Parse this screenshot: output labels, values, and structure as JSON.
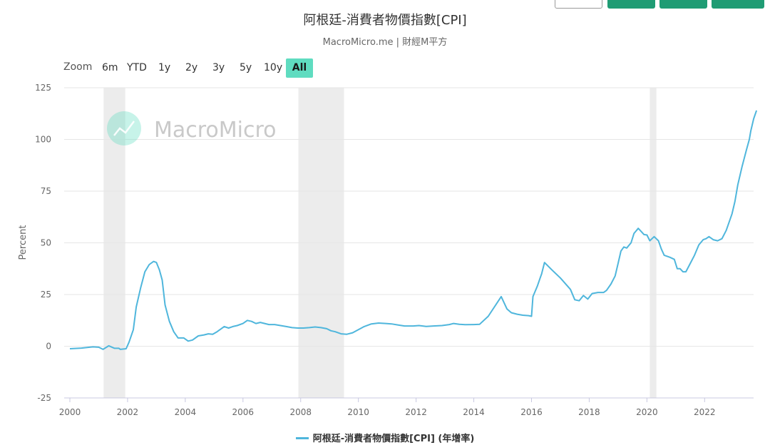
{
  "header": {
    "title": "阿根廷-消費者物價指數[CPI]",
    "subtitle": "MacroMicro.me | 財經M平方"
  },
  "range_selector": {
    "zoom_label": "Zoom",
    "buttons": [
      "6m",
      "YTD",
      "1y",
      "2y",
      "3y",
      "5y",
      "10y",
      "All"
    ],
    "active": "All",
    "active_color": "#5fdcc0"
  },
  "watermark": {
    "text": "MacroMicro"
  },
  "colors": {
    "line": "#4fb6dc",
    "band": "#ececec",
    "grid": "#e6e6e6",
    "accent": "#1f9c74"
  },
  "chart_data": {
    "type": "line",
    "title": "阿根廷-消費者物價指數[CPI]",
    "ylabel": "Percent",
    "ylim": [
      -25,
      125
    ],
    "yticks": [
      -25,
      0,
      25,
      50,
      75,
      100,
      125
    ],
    "xlim": [
      2000,
      2023.6
    ],
    "xticks": [
      "2000",
      "2002",
      "2004",
      "2006",
      "2008",
      "2010",
      "2012",
      "2014",
      "2016",
      "2018",
      "2020",
      "2022"
    ],
    "grid": true,
    "legend": "bottom-center",
    "recession_bands": [
      [
        2001.17,
        2001.92
      ],
      [
        2007.92,
        2009.5
      ],
      [
        2020.1,
        2020.33
      ]
    ],
    "series": [
      {
        "name": "阿根廷-消費者物價指數[CPI] (年增率)",
        "points": [
          [
            2000.0,
            -1.2
          ],
          [
            2000.4,
            -0.9
          ],
          [
            2000.8,
            -0.3
          ],
          [
            2001.0,
            -0.5
          ],
          [
            2001.15,
            -1.5
          ],
          [
            2001.35,
            0.2
          ],
          [
            2001.55,
            -1.0
          ],
          [
            2001.7,
            -1.0
          ],
          [
            2001.75,
            -1.5
          ],
          [
            2001.95,
            -1.2
          ],
          [
            2002.05,
            2.0
          ],
          [
            2002.2,
            8.0
          ],
          [
            2002.3,
            19.0
          ],
          [
            2002.45,
            28.0
          ],
          [
            2002.6,
            36.0
          ],
          [
            2002.75,
            39.5
          ],
          [
            2002.9,
            41.0
          ],
          [
            2003.0,
            40.5
          ],
          [
            2003.1,
            37.0
          ],
          [
            2003.2,
            32.0
          ],
          [
            2003.3,
            20.0
          ],
          [
            2003.45,
            12.0
          ],
          [
            2003.6,
            7.0
          ],
          [
            2003.75,
            4.0
          ],
          [
            2003.95,
            4.0
          ],
          [
            2004.1,
            2.5
          ],
          [
            2004.25,
            3.0
          ],
          [
            2004.45,
            5.0
          ],
          [
            2004.65,
            5.5
          ],
          [
            2004.8,
            6.0
          ],
          [
            2004.95,
            5.8
          ],
          [
            2005.1,
            7.0
          ],
          [
            2005.35,
            9.5
          ],
          [
            2005.5,
            8.8
          ],
          [
            2005.65,
            9.5
          ],
          [
            2005.8,
            10.0
          ],
          [
            2006.0,
            11.0
          ],
          [
            2006.15,
            12.5
          ],
          [
            2006.3,
            12.0
          ],
          [
            2006.45,
            11.0
          ],
          [
            2006.6,
            11.5
          ],
          [
            2006.75,
            11.0
          ],
          [
            2006.9,
            10.5
          ],
          [
            2007.1,
            10.5
          ],
          [
            2007.3,
            10.0
          ],
          [
            2007.5,
            9.5
          ],
          [
            2007.7,
            9.0
          ],
          [
            2007.9,
            8.8
          ],
          [
            2008.1,
            8.8
          ],
          [
            2008.3,
            9.0
          ],
          [
            2008.5,
            9.3
          ],
          [
            2008.7,
            9.0
          ],
          [
            2008.9,
            8.5
          ],
          [
            2009.05,
            7.5
          ],
          [
            2009.2,
            7.0
          ],
          [
            2009.4,
            6.0
          ],
          [
            2009.6,
            5.8
          ],
          [
            2009.8,
            6.5
          ],
          [
            2010.0,
            8.0
          ],
          [
            2010.2,
            9.5
          ],
          [
            2010.45,
            10.8
          ],
          [
            2010.7,
            11.2
          ],
          [
            2010.95,
            11.0
          ],
          [
            2011.15,
            10.8
          ],
          [
            2011.4,
            10.2
          ],
          [
            2011.6,
            9.8
          ],
          [
            2011.9,
            9.8
          ],
          [
            2012.1,
            10.0
          ],
          [
            2012.35,
            9.6
          ],
          [
            2012.6,
            9.8
          ],
          [
            2012.9,
            10.0
          ],
          [
            2013.15,
            10.5
          ],
          [
            2013.3,
            11.0
          ],
          [
            2013.5,
            10.6
          ],
          [
            2013.7,
            10.4
          ],
          [
            2014.0,
            10.5
          ],
          [
            2014.2,
            10.6
          ],
          [
            2014.5,
            14.5
          ],
          [
            2014.95,
            24.0
          ],
          [
            2015.15,
            18.0
          ],
          [
            2015.3,
            16.2
          ],
          [
            2015.5,
            15.5
          ],
          [
            2015.7,
            15.0
          ],
          [
            2015.9,
            14.8
          ],
          [
            2016.0,
            14.5
          ],
          [
            2016.05,
            24.0
          ],
          [
            2016.2,
            29.0
          ],
          [
            2016.3,
            33.0
          ],
          [
            2016.35,
            35.0
          ],
          [
            2016.45,
            40.5
          ],
          [
            2016.7,
            37.0
          ],
          [
            2017.0,
            33.0
          ],
          [
            2017.35,
            27.5
          ],
          [
            2017.5,
            22.5
          ],
          [
            2017.65,
            22.0
          ],
          [
            2017.8,
            24.5
          ],
          [
            2017.95,
            22.8
          ],
          [
            2018.1,
            25.5
          ],
          [
            2018.3,
            26.0
          ],
          [
            2018.5,
            26.0
          ],
          [
            2018.6,
            27.0
          ],
          [
            2018.75,
            30.0
          ],
          [
            2018.9,
            34.0
          ],
          [
            2019.0,
            40.0
          ],
          [
            2019.1,
            46.0
          ],
          [
            2019.2,
            48.0
          ],
          [
            2019.3,
            47.5
          ],
          [
            2019.45,
            50.0
          ],
          [
            2019.55,
            54.5
          ],
          [
            2019.7,
            57.0
          ],
          [
            2019.8,
            55.5
          ],
          [
            2019.9,
            54.0
          ],
          [
            2020.0,
            53.8
          ],
          [
            2020.1,
            51.0
          ],
          [
            2020.25,
            53.0
          ],
          [
            2020.4,
            51.0
          ],
          [
            2020.5,
            47.0
          ],
          [
            2020.6,
            44.0
          ],
          [
            2020.8,
            43.0
          ],
          [
            2020.95,
            42.0
          ],
          [
            2021.05,
            37.5
          ],
          [
            2021.15,
            37.5
          ],
          [
            2021.25,
            36.0
          ],
          [
            2021.35,
            36.0
          ],
          [
            2021.5,
            40.0
          ],
          [
            2021.65,
            44.0
          ],
          [
            2021.8,
            49.0
          ],
          [
            2021.95,
            51.5
          ],
          [
            2022.05,
            52.0
          ],
          [
            2022.15,
            53.0
          ],
          [
            2022.3,
            51.5
          ],
          [
            2022.45,
            51.0
          ],
          [
            2022.6,
            52.0
          ],
          [
            2022.75,
            56.0
          ],
          [
            2022.95,
            64.0
          ],
          [
            2023.05,
            70.0
          ],
          [
            2023.15,
            78.0
          ],
          [
            2023.3,
            87.0
          ],
          [
            2023.45,
            95.0
          ],
          [
            2023.55,
            100.0
          ],
          [
            2023.6,
            104.0
          ],
          [
            2023.7,
            110.0
          ],
          [
            2023.8,
            114.0
          ]
        ]
      }
    ]
  }
}
